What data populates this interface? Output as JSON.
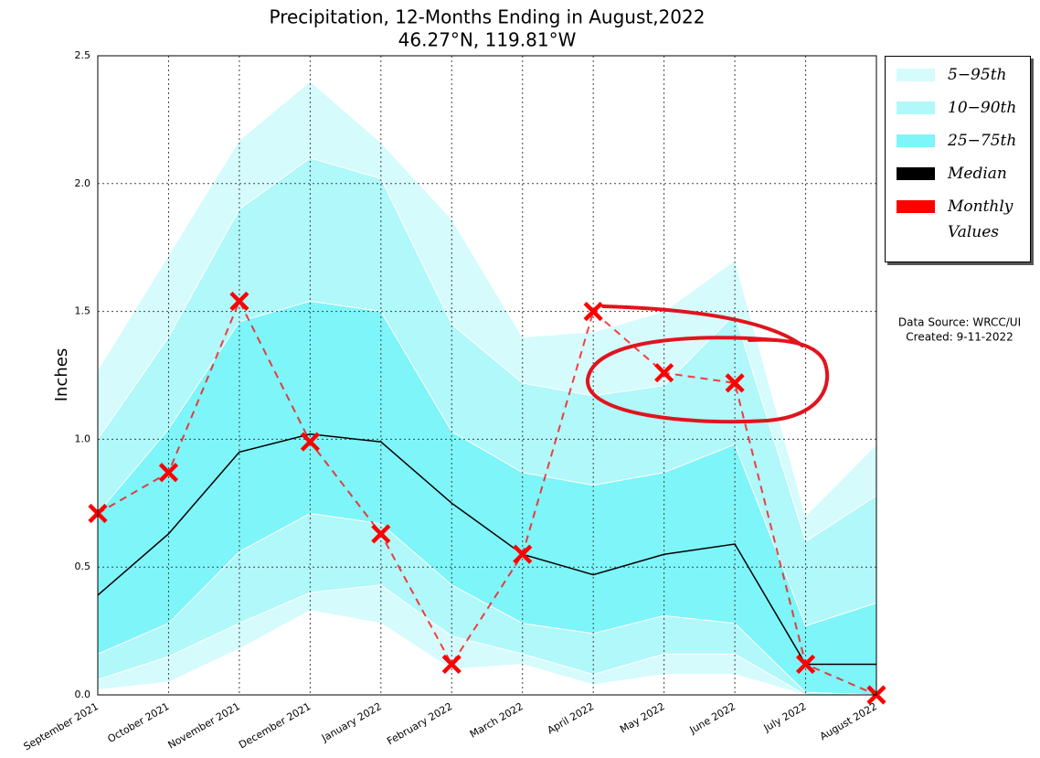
{
  "chart_data": {
    "type": "band-line",
    "title": "Precipitation, 12-Months Ending in August,2022",
    "subtitle": "46.27°N, 119.81°W",
    "y_label": "Inches",
    "source": "Data Source: WRCC/UI",
    "created": "Created: 9-11-2022",
    "categories": [
      "September 2021",
      "October 2021",
      "November 2021",
      "December 2021",
      "January 2022",
      "February 2022",
      "March 2022",
      "April 2022",
      "May 2022",
      "June 2022",
      "July 2022",
      "August 2022"
    ],
    "ylim": [
      0,
      2.5
    ],
    "yticks": [
      {
        "value": 0,
        "label": "0.0"
      },
      0.5,
      {
        "value": 1,
        "label": "1.0"
      },
      1.5,
      {
        "value": 2,
        "label": "2.0"
      },
      2.5
    ],
    "grid": true,
    "legend": "outside-right",
    "bands": [
      {
        "name": "5−95th",
        "color": "#d5fbfc",
        "low": [
          0.02,
          0.05,
          0.18,
          0.33,
          0.28,
          0.1,
          0.12,
          0.04,
          0.08,
          0.08,
          0,
          0
        ],
        "high": [
          1.27,
          1.72,
          2.17,
          2.4,
          2.16,
          1.86,
          1.4,
          1.42,
          1.5,
          1.7,
          0.7,
          0.98
        ]
      },
      {
        "name": "10−90th",
        "color": "#b0f8f9",
        "low": [
          0.06,
          0.15,
          0.28,
          0.4,
          0.43,
          0.23,
          0.16,
          0.08,
          0.16,
          0.16,
          0,
          0
        ],
        "high": [
          1.0,
          1.4,
          1.9,
          2.1,
          2.02,
          1.45,
          1.22,
          1.17,
          1.21,
          1.49,
          0.6,
          0.78
        ]
      },
      {
        "name": "25−75th",
        "color": "#7ef5f9",
        "low": [
          0.16,
          0.28,
          0.56,
          0.71,
          0.67,
          0.43,
          0.28,
          0.24,
          0.31,
          0.28,
          0.01,
          0
        ],
        "high": [
          0.71,
          1.04,
          1.46,
          1.54,
          1.5,
          1.03,
          0.87,
          0.82,
          0.87,
          0.98,
          0.27,
          0.36
        ]
      }
    ],
    "series": [
      {
        "name": "Median",
        "color": "#000000",
        "values": [
          0.39,
          0.63,
          0.95,
          1.02,
          0.99,
          0.75,
          0.55,
          0.47,
          0.55,
          0.59,
          0.12,
          0.12
        ]
      },
      {
        "name": "Monthly Values",
        "color": "#ff0000",
        "values": [
          0.71,
          0.87,
          1.54,
          0.99,
          0.63,
          0.12,
          0.55,
          1.5,
          1.26,
          1.22,
          0.12,
          0.0
        ]
      }
    ]
  }
}
